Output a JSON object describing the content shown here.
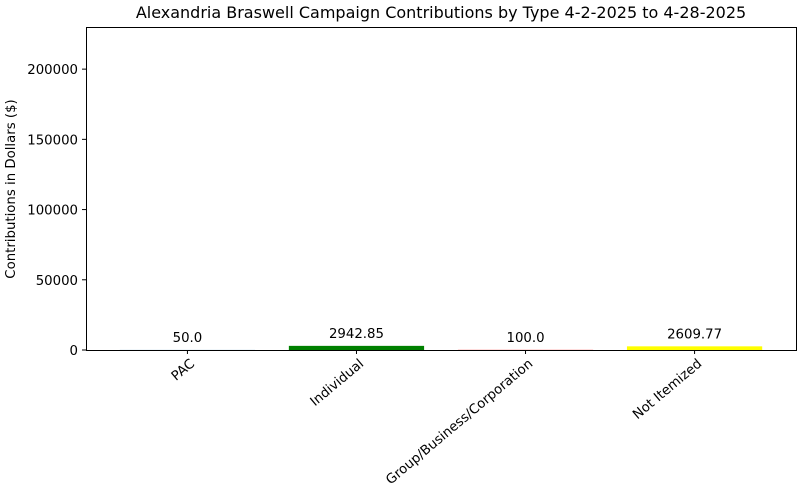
{
  "chart_data": {
    "type": "bar",
    "title": "Alexandria Braswell Campaign Contributions by Type 4-2-2025 to 4-28-2025",
    "xlabel": "",
    "ylabel": "Contributions in Dollars ($)",
    "categories": [
      "PAC",
      "Individual",
      "Group/Business/Corporation",
      "Not Itemized"
    ],
    "values": [
      50.0,
      2942.85,
      100.0,
      2609.77
    ],
    "data_labels": [
      "50.0",
      "2942.85",
      "100.0",
      "2609.77"
    ],
    "colors": [
      "#1f77b4",
      "#008000",
      "#ff0000",
      "#ffff00"
    ],
    "ylim": [
      0,
      230000
    ],
    "yticks": [
      0,
      50000,
      100000,
      150000,
      200000
    ],
    "ytick_labels": [
      "0",
      "50000",
      "100000",
      "150000",
      "200000"
    ],
    "grid": false,
    "legend": "none"
  }
}
